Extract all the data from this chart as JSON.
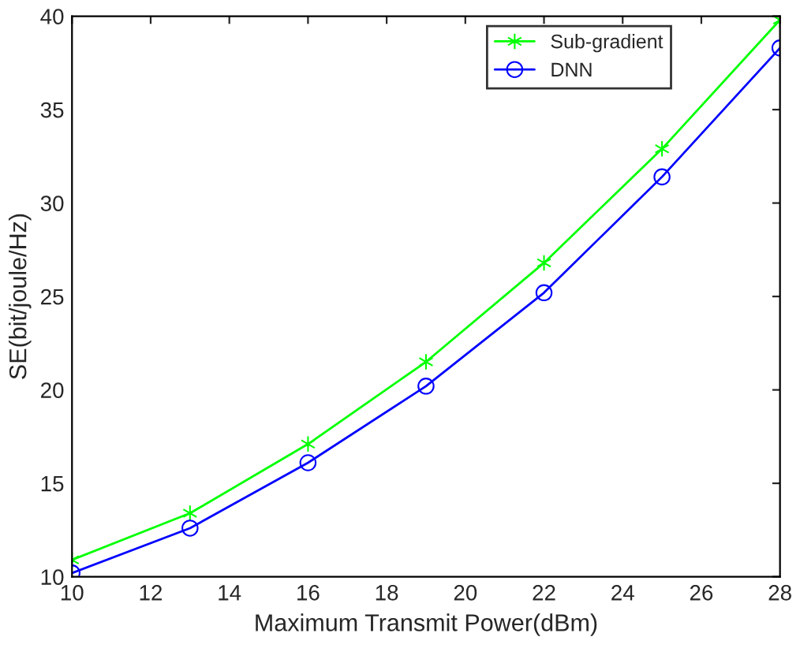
{
  "chart_data": {
    "type": "line",
    "xlabel": "Maximum Transmit Power(dBm)",
    "ylabel": "SE(bit/joule/Hz)",
    "x": [
      10,
      13,
      16,
      19,
      22,
      25,
      28
    ],
    "series": [
      {
        "name": "Sub-gradient",
        "color": "#00ff00",
        "marker": "cross",
        "values": [
          10.9,
          13.4,
          17.1,
          21.5,
          26.8,
          32.9,
          39.8
        ]
      },
      {
        "name": "DNN",
        "color": "#0000ff",
        "marker": "circle",
        "values": [
          10.2,
          12.6,
          16.1,
          20.2,
          25.2,
          31.4,
          38.3
        ]
      }
    ],
    "xlim": [
      10,
      28
    ],
    "xticks": [
      10,
      12,
      14,
      16,
      18,
      20,
      22,
      24,
      26,
      28
    ],
    "ylim": [
      10,
      40
    ],
    "yticks": [
      10,
      15,
      20,
      25,
      30,
      35,
      40
    ],
    "grid": false,
    "legend": "top right",
    "line_style": "solid"
  }
}
